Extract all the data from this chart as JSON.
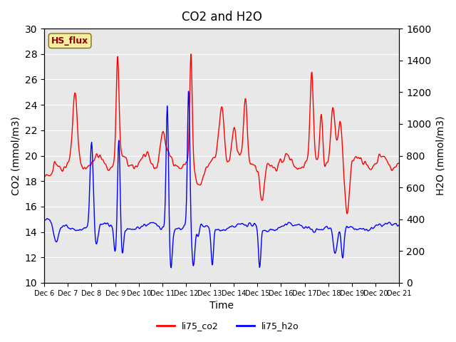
{
  "title": "CO2 and H2O",
  "xlabel": "Time",
  "ylabel_left": "CO2 (mmol/m3)",
  "ylabel_right": "H2O (mmol/m3)",
  "xlim_days": [
    6,
    21
  ],
  "ylim_left": [
    10,
    30
  ],
  "ylim_right": [
    0,
    1600
  ],
  "yticks_left": [
    10,
    12,
    14,
    16,
    18,
    20,
    22,
    24,
    26,
    28,
    30
  ],
  "yticks_right": [
    0,
    200,
    400,
    600,
    800,
    1000,
    1200,
    1400,
    1600
  ],
  "xtick_labels": [
    "Dec 6",
    "Dec 7",
    "Dec 8",
    "Dec 9",
    "Dec 10",
    "Dec 11",
    "Dec 12",
    "Dec 13",
    "Dec 14",
    "Dec 15",
    "Dec 16",
    "Dec 17",
    "Dec 18",
    "Dec 19",
    "Dec 20",
    "Dec 21"
  ],
  "color_co2": "red",
  "color_h2o": "blue",
  "label_co2": "li75_co2",
  "label_h2o": "li75_h2o",
  "watermark": "HS_flux",
  "bg_color": "#e8e8e8",
  "linewidth": 1.0
}
